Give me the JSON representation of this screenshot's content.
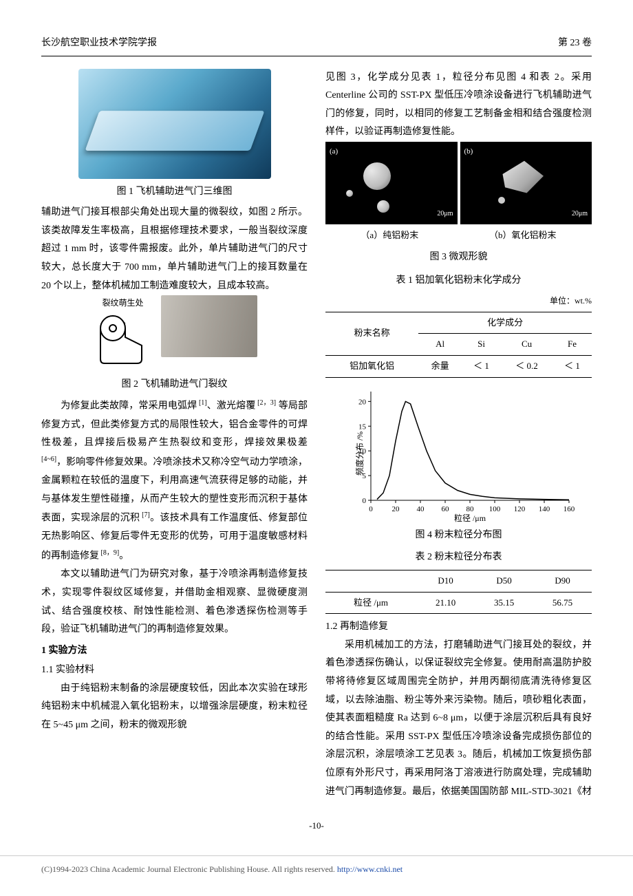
{
  "header": {
    "left": "长沙航空职业技术学院学报",
    "right": "第 23 卷"
  },
  "col1": {
    "fig1_caption": "图 1  飞机辅助进气门三维图",
    "para1": "辅助进气门接耳根部尖角处出现大量的微裂纹，如图 2 所示。该类故障发生率极高，且根据修理技术要求，一般当裂纹深度超过 1 mm 时，该零件需报废。此外，单片辅助进气门的尺寸较大，总长度大于 700 mm，单片辅助进气门上的接耳数量在 20 个以上，整体机械加工制造难度较大，且成本较高。",
    "fig2_annot": "裂纹萌生处",
    "fig2_caption": "图 2  飞机辅助进气门裂纹",
    "para2_pre": "　　为修复此类故障，常采用电弧焊",
    "ref1": " [1]",
    "para2_mid1": "、激光熔覆",
    "ref23": " [2，3]",
    "para2_mid2": " 等局部修复方式，但此类修复方式的局限性较大，铝合金零件的可焊性极差，且焊接后极易产生热裂纹和变形，焊接效果极差",
    "ref46": " [4~6]",
    "para2_mid3": "，影响零件修复效果。冷喷涂技术又称冷空气动力学喷涂，金属颗粒在较低的温度下，利用高速气流获得足够的动能，并与基体发生塑性碰撞，从而产生较大的塑性变形而沉积于基体表面，实现涂层的沉积",
    "ref7": " [7]",
    "para2_mid4": "。该技术具有工作温度低、修复部位无热影响区、修复后零件无变形的优势，可用于温度敏感材料的再制造修复",
    "ref89": " [8，9]",
    "para2_end": "。",
    "para3": "本文以辅助进气门为研究对象，基于冷喷涂再制造修复技术，实现零件裂纹区域修复，并借助金相观察、显微硬度测试、结合强度校核、耐蚀性能检测、着色渗透探伤检测等手段，验证飞机辅助进气门的再制造修复效果。",
    "sec1_title": "1 实验方法",
    "sec11_title": "1.1 实验材料",
    "para4": "由于纯铝粉末制备的涂层硬度较低，因此本次实验在球形纯铝粉末中机械混入氧化铝粉末，以增强涂层硬度，粉末粒径在 5~45 μm 之间，粉末的微观形貌"
  },
  "col2": {
    "para1": "见图 3，化学成分见表 1，粒径分布见图 4 和表 2。采用 Centerline 公司的 SST-PX 型低压冷喷涂设备进行飞机辅助进气门的修复，同时，以相同的修复工艺制备金相和结合强度检测样件，以验证再制造修复性能。",
    "fig3_a": "(a)",
    "fig3_b": "(b)",
    "fig3_scale": "20μm",
    "fig3_sub_a": "（a）纯铝粉末",
    "fig3_sub_b": "（b）氧化铝粉末",
    "fig3_caption": "图 3  微观形貌",
    "table1_caption": "表 1  铝加氧化铝粉末化学成分",
    "table1_unit": "单位：wt.%",
    "table1": {
      "row1_col1": "粉末名称",
      "row1_col2": "化学成分",
      "cols": [
        "Al",
        "Si",
        "Cu",
        "Fe"
      ],
      "row_name": "铝加氧化铝",
      "row_vals": [
        "余量",
        "＜ 1",
        "＜ 0.2",
        "＜ 1"
      ]
    },
    "chart": {
      "type": "line",
      "xlabel": "粒径 /μm",
      "ylabel": "频度分布 /%",
      "xlim": [
        0,
        160
      ],
      "ylim": [
        0,
        22
      ],
      "xticks": [
        0,
        20,
        40,
        60,
        80,
        100,
        120,
        140,
        160
      ],
      "yticks": [
        0,
        5,
        10,
        15,
        20
      ],
      "line_color": "#000000",
      "line_width": 1.5,
      "background_color": "#ffffff",
      "axis_color": "#000000",
      "tick_fontsize": 11,
      "label_fontsize": 12,
      "points": [
        [
          5,
          0.2
        ],
        [
          10,
          1.5
        ],
        [
          15,
          5
        ],
        [
          20,
          12
        ],
        [
          25,
          18
        ],
        [
          28,
          20
        ],
        [
          32,
          19.5
        ],
        [
          38,
          15
        ],
        [
          45,
          10
        ],
        [
          52,
          6
        ],
        [
          60,
          3.5
        ],
        [
          70,
          2
        ],
        [
          80,
          1.2
        ],
        [
          90,
          0.8
        ],
        [
          100,
          0.5
        ],
        [
          120,
          0.3
        ],
        [
          140,
          0.2
        ],
        [
          160,
          0.1
        ]
      ]
    },
    "fig4_caption": "图 4  粉末粒径分布图",
    "table2_caption": "表 2  粉末粒径分布表",
    "table2": {
      "cols": [
        "",
        "D10",
        "D50",
        "D90"
      ],
      "row_name": "粒径 /μm",
      "row_vals": [
        "21.10",
        "35.15",
        "56.75"
      ]
    },
    "sec12_title": "1.2 再制造修复",
    "para2": "采用机械加工的方法，打磨辅助进气门接耳处的裂纹，并着色渗透探伤确认，以保证裂纹完全修复。使用耐高温防护胶带将待修复区域周围完全防护，并用丙酮彻底清洗待修复区域，以去除油脂、粉尘等外来污染物。随后，喷砂粗化表面，使其表面粗糙度 Ra 达到 6~8 μm，以便于涂层沉积后具有良好的结合性能。采用 SST-PX 型低压冷喷涂设备完成损伤部位的涂层沉积，涂层喷涂工艺见表 3。随后，机械加工恢复损伤部位原有外形尺寸，再采用阿洛丁溶液进行防腐处理，完成辅助进气门再制造修复。最后，依据美国国防部 MIL-STD-3021《材"
  },
  "page_num": "-10-",
  "footer": {
    "text": "(C)1994-2023 China Academic Journal Electronic Publishing House. All rights reserved.   ",
    "link": "http://www.cnki.net"
  }
}
